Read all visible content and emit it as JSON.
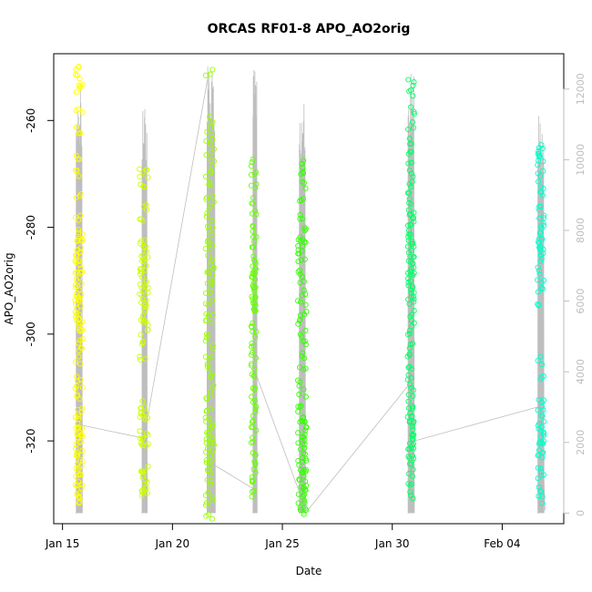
{
  "chart_data": {
    "type": "scatter",
    "title": "ORCAS RF01-8 APO_AO2orig",
    "xlabel": "Date",
    "ylabel": "APO_AO2orig",
    "x_ticks": [
      "Jan 15",
      "Jan 20",
      "Jan 25",
      "Jan 30",
      "Feb 04"
    ],
    "x_tick_values": [
      15,
      20,
      25,
      30,
      35
    ],
    "xlim": [
      14.6,
      37.8
    ],
    "y_ticks": [
      -260,
      -280,
      -300,
      -320
    ],
    "ylim": [
      -335.5,
      -247.5
    ],
    "y2_ticks": [
      0,
      2000,
      4000,
      6000,
      8000,
      10000,
      12000
    ],
    "y2lim": [
      -300,
      13000
    ],
    "grid": false,
    "colors": {
      "axis": "#000000",
      "secondary_axis": "#bebebe",
      "altitude_trace": "#bebebe",
      "flight_path": "#bebebe"
    },
    "series": [
      {
        "color": "#ffff00",
        "x_center": 15.75,
        "x_spread": 0.18,
        "values": [
          -250,
          -252,
          -253,
          -254,
          -258,
          -262,
          -267,
          -270,
          -274,
          -278,
          -281,
          -282,
          -283,
          -284,
          -285,
          -286,
          -287,
          -288,
          -289,
          -290,
          -291,
          -292,
          -293,
          -294,
          -295,
          -296,
          -297,
          -298,
          -299,
          -300,
          -301,
          -303,
          -305,
          -308,
          -310,
          -312,
          -314,
          -315,
          -316,
          -317,
          -318,
          -319,
          -320,
          -321,
          -322,
          -323,
          -324,
          -325,
          -326,
          -327,
          -328,
          -329,
          -330,
          -331
        ]
      },
      {
        "color": "#ccff00",
        "x_center": 18.7,
        "x_spread": 0.2,
        "values": [
          -269,
          -270,
          -272,
          -276,
          -278,
          -283,
          -284,
          -285,
          -286,
          -287,
          -288,
          -289,
          -290,
          -291,
          -292,
          -293,
          -294,
          -295,
          -296,
          -297,
          -298,
          -300,
          -302,
          -304,
          -313,
          -314,
          -315,
          -316,
          -318,
          -319,
          -320,
          -321,
          -325,
          -326,
          -327,
          -328,
          -329,
          -330
        ]
      },
      {
        "color": "#99ff00",
        "x_center": 21.7,
        "x_spread": 0.2,
        "values": [
          -251,
          -260,
          -262,
          -264,
          -266,
          -268,
          -270,
          -272,
          -274,
          -276,
          -278,
          -280,
          -282,
          -284,
          -286,
          -288,
          -289,
          -290,
          -292,
          -294,
          -296,
          -298,
          -300,
          -302,
          -304,
          -306,
          -308,
          -310,
          -312,
          -314,
          -316,
          -317,
          -318,
          -319,
          -320,
          -321,
          -322,
          -323,
          -324,
          -326,
          -328,
          -330,
          -332,
          -334
        ]
      },
      {
        "color": "#66ff00",
        "x_center": 23.7,
        "x_spread": 0.12,
        "values": [
          -268,
          -270,
          -272,
          -275,
          -277,
          -280,
          -282,
          -284,
          -286,
          -287,
          -288,
          -289,
          -290,
          -291,
          -292,
          -293,
          -294,
          -295,
          -296,
          -298,
          -300,
          -302,
          -304,
          -306,
          -308,
          -310,
          -312,
          -314,
          -316,
          -318,
          -320,
          -322,
          -324,
          -326,
          -328,
          -330
        ]
      },
      {
        "color": "#33ff00",
        "x_center": 25.9,
        "x_spread": 0.2,
        "values": [
          -268,
          -270,
          -272,
          -275,
          -278,
          -280,
          -282,
          -283,
          -284,
          -285,
          -286,
          -288,
          -290,
          -292,
          -294,
          -296,
          -298,
          -300,
          -302,
          -304,
          -306,
          -309,
          -311,
          -313,
          -315,
          -316,
          -317,
          -318,
          -319,
          -320,
          -321,
          -322,
          -323,
          -324,
          -325,
          -326,
          -327,
          -328,
          -329,
          -330,
          -331,
          -332,
          -333
        ]
      },
      {
        "color": "#00ff66",
        "x_center": 30.85,
        "x_spread": 0.15,
        "values": [
          -253,
          -255,
          -258,
          -261,
          -264,
          -266,
          -268,
          -270,
          -272,
          -274,
          -276,
          -278,
          -279,
          -280,
          -281,
          -282,
          -283,
          -284,
          -285,
          -286,
          -287,
          -288,
          -289,
          -290,
          -291,
          -292,
          -293,
          -294,
          -296,
          -298,
          -300,
          -302,
          -304,
          -306,
          -308,
          -310,
          -312,
          -314,
          -315,
          -316,
          -317,
          -318,
          -319,
          -320,
          -321,
          -322,
          -323,
          -324,
          -326,
          -328,
          -330
        ]
      },
      {
        "color": "#00ffcc",
        "x_center": 36.75,
        "x_spread": 0.15,
        "values": [
          -265,
          -266,
          -267,
          -268,
          -270,
          -272,
          -274,
          -276,
          -278,
          -280,
          -281,
          -282,
          -283,
          -284,
          -285,
          -286,
          -288,
          -290,
          -292,
          -294,
          -305,
          -308,
          -312,
          -314,
          -316,
          -317,
          -318,
          -319,
          -320,
          -321,
          -322,
          -323,
          -325,
          -327,
          -329,
          -331
        ]
      }
    ],
    "altitude_bands": [
      {
        "x_start": 15.6,
        "x_end": 15.9,
        "max": 12600
      },
      {
        "x_start": 18.6,
        "x_end": 18.85,
        "max": 11600
      },
      {
        "x_start": 21.55,
        "x_end": 21.95,
        "max": 12700
      },
      {
        "x_start": 23.65,
        "x_end": 23.85,
        "max": 12800
      },
      {
        "x_start": 25.75,
        "x_end": 26.05,
        "max": 11800
      },
      {
        "x_start": 30.7,
        "x_end": 31.0,
        "max": 12600
      },
      {
        "x_start": 36.6,
        "x_end": 36.9,
        "max": 11500
      }
    ],
    "flight_path": [
      [
        15.8,
        -317
      ],
      [
        18.7,
        -319.5
      ],
      [
        21.65,
        -251
      ],
      [
        21.9,
        -324.5
      ],
      [
        23.7,
        -329
      ],
      [
        23.8,
        -307.5
      ],
      [
        25.85,
        -330.5
      ],
      [
        26.05,
        -333.5
      ],
      [
        30.85,
        -309
      ],
      [
        31.0,
        -320
      ],
      [
        36.75,
        -313.5
      ],
      [
        36.95,
        -333
      ]
    ]
  }
}
